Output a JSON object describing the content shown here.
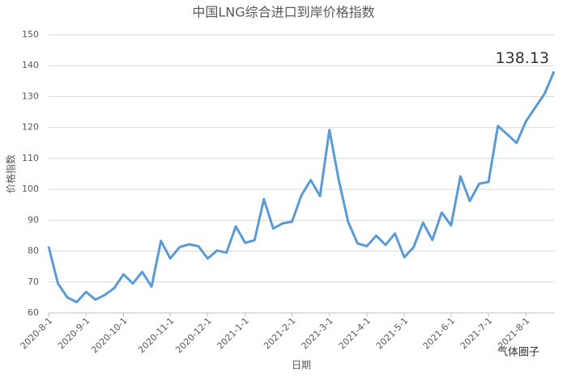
{
  "chart_data": {
    "type": "line",
    "title": "中国LNG综合进口到岸价格指数",
    "x_label": "日期",
    "y_label": "价格指数",
    "watermark": "气体圈子",
    "categories": [
      "2020-8-1",
      null,
      null,
      null,
      "2020-9-1",
      null,
      null,
      null,
      "2020-10-1",
      null,
      null,
      null,
      null,
      "2020-11-1",
      null,
      null,
      null,
      "2020-12-1",
      null,
      null,
      null,
      "2021-1-1",
      null,
      null,
      null,
      null,
      "2021-2-1",
      null,
      null,
      null,
      "2021-3-1",
      null,
      null,
      null,
      "2021-4-1",
      null,
      null,
      null,
      "2021-5-1",
      null,
      null,
      null,
      null,
      "2021-6-1",
      null,
      null,
      null,
      "2021-7-1",
      null,
      null,
      null,
      "2021-8-1",
      null,
      null,
      null
    ],
    "values": [
      81.5,
      69.5,
      65,
      63.5,
      66.8,
      64.3,
      65.8,
      68,
      72.5,
      69.5,
      73.3,
      68.5,
      83.3,
      77.6,
      81.3,
      82.2,
      81.6,
      77.6,
      80.2,
      79.5,
      88,
      82.7,
      83.5,
      96.8,
      87.3,
      89,
      89.5,
      98,
      103,
      97.8,
      119.2,
      103,
      89.5,
      82.5,
      81.6,
      85,
      82,
      85.7,
      78,
      81.3,
      89.2,
      83.6,
      92.5,
      88.3,
      104.2,
      96.2,
      101.8,
      102.4,
      120.5,
      117.8,
      115,
      122,
      126.5,
      131,
      138.13
    ],
    "color": "#5b9bd5",
    "ylim": [
      60,
      150
    ],
    "yticks": [
      60,
      70,
      80,
      90,
      100,
      110,
      120,
      130,
      140,
      150
    ],
    "grid": true
  }
}
